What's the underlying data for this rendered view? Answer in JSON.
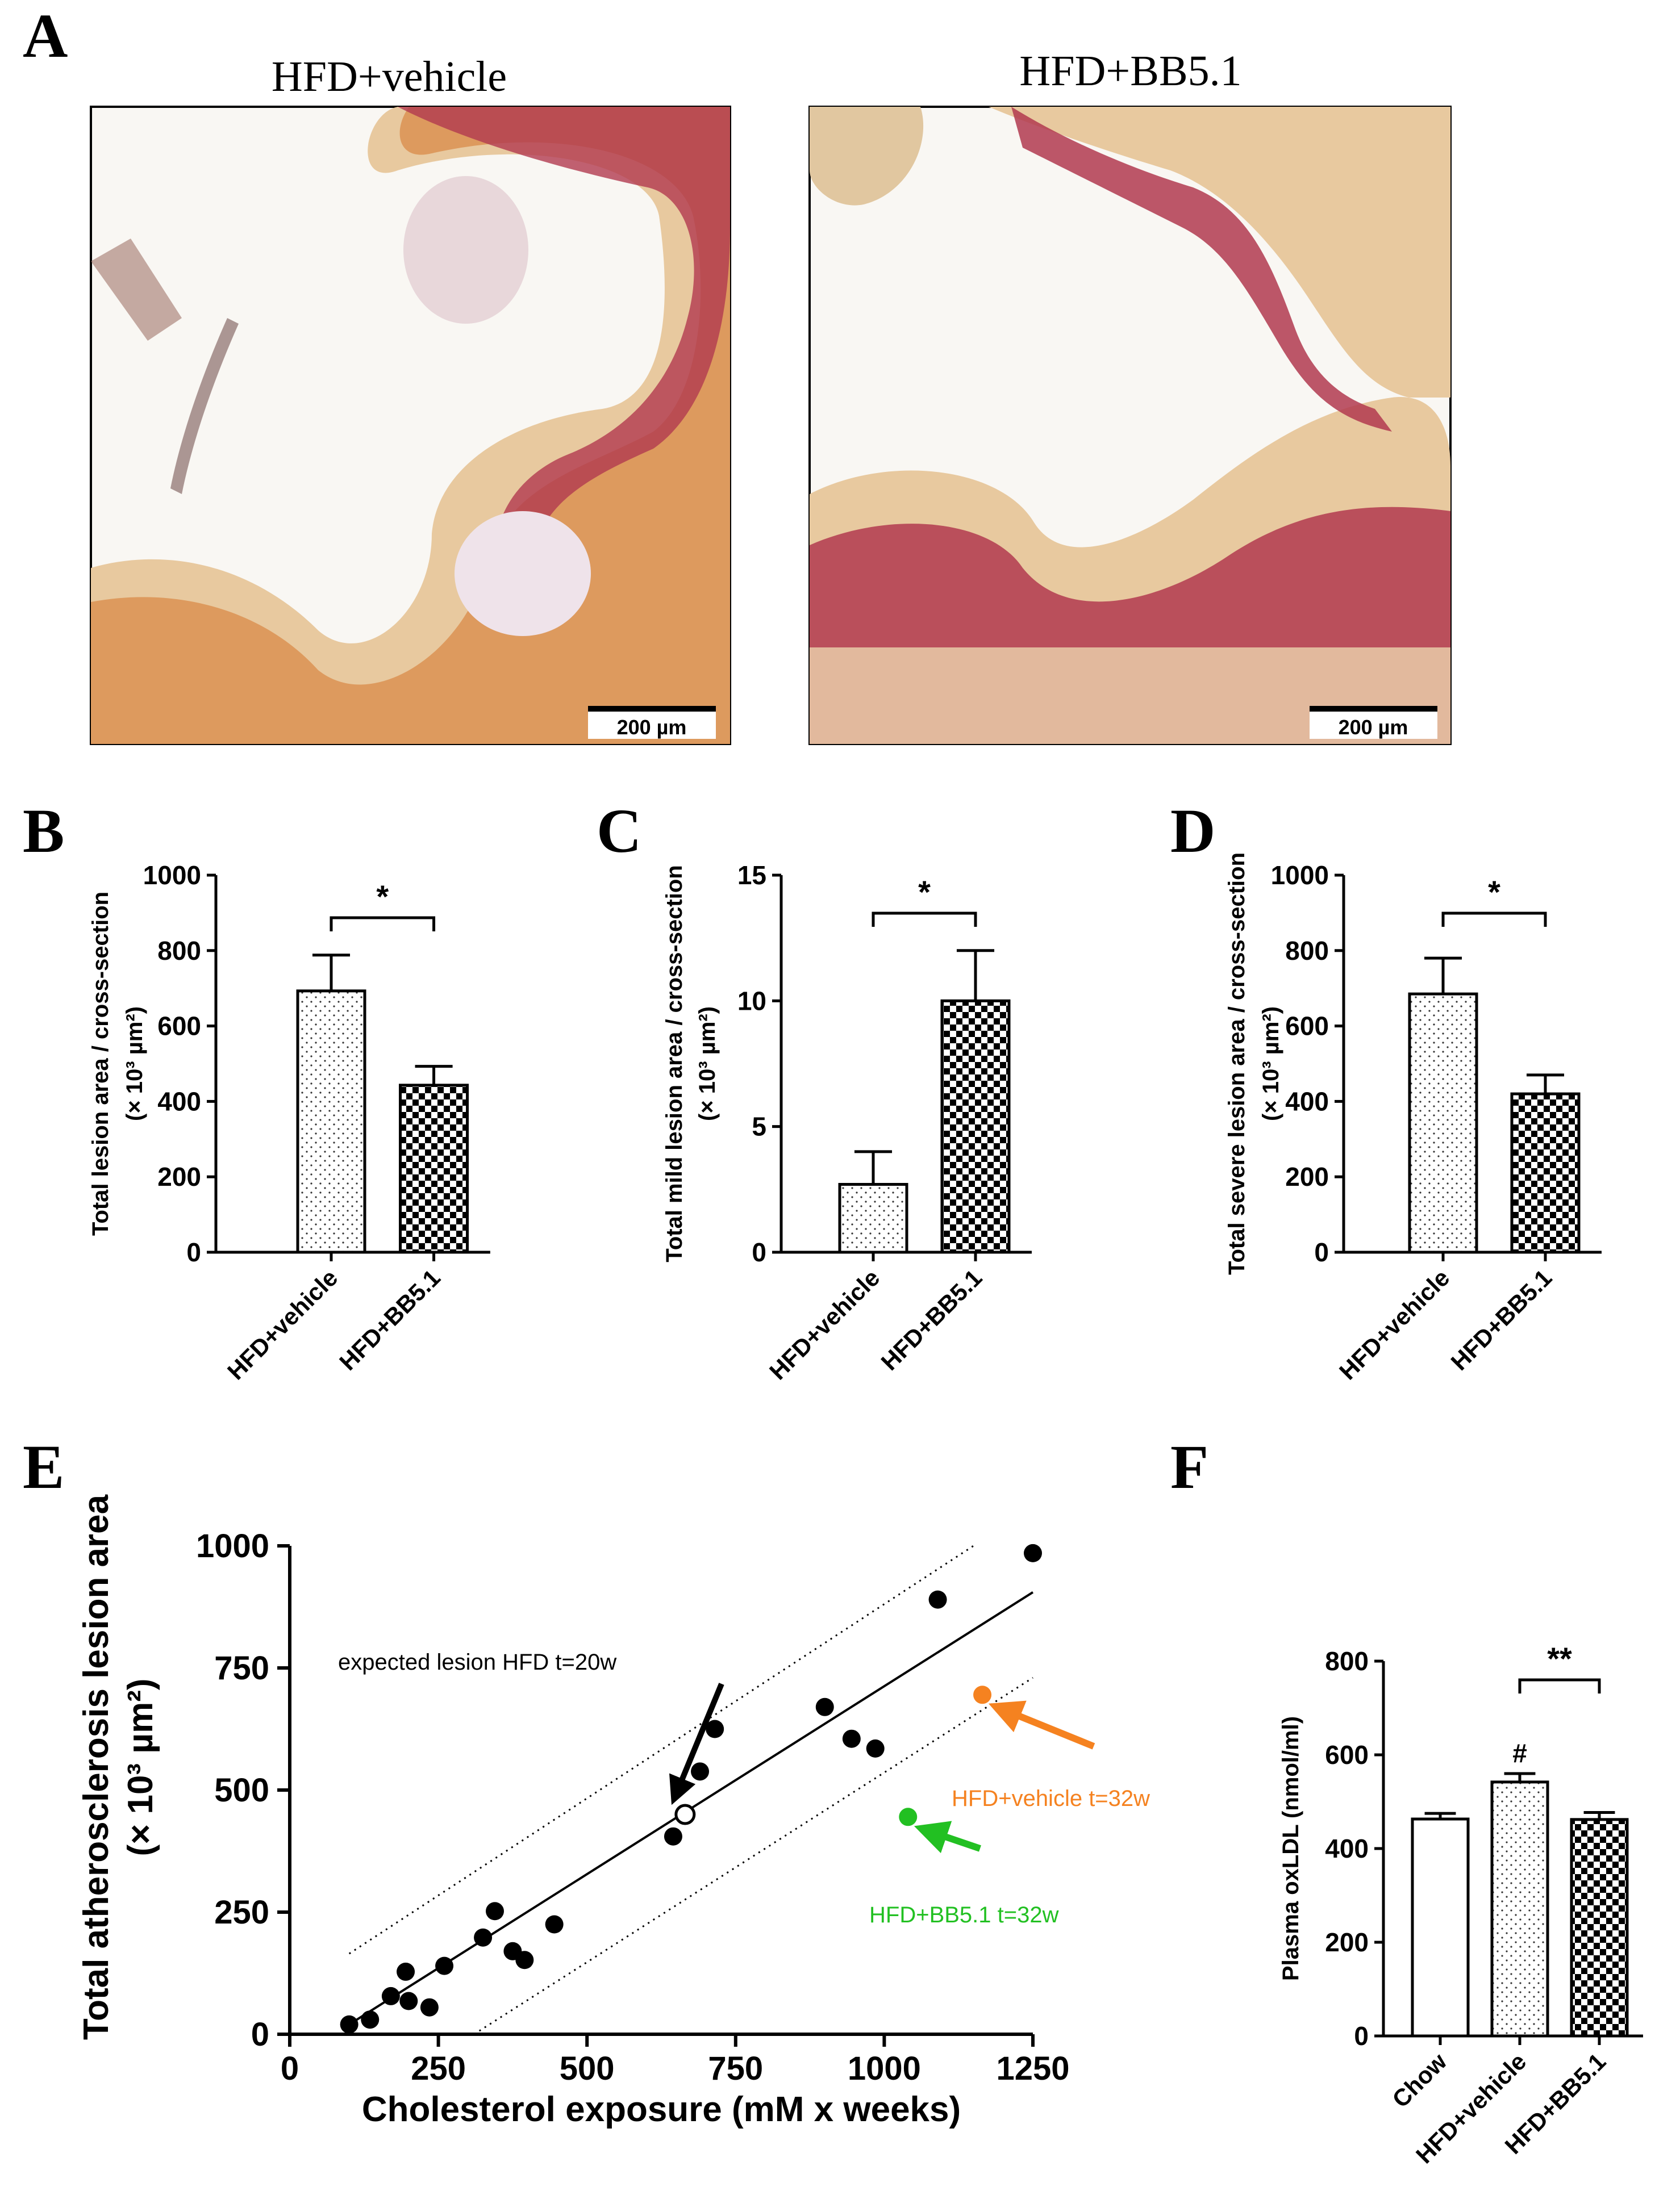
{
  "colors": {
    "axis": "#000000",
    "orange": "#f58220",
    "green": "#22c022",
    "stain_bg": "#f8f6f2",
    "stain_red": "#b23a4f",
    "stain_orange": "#d98a48",
    "stain_tan": "#e6c79a"
  },
  "panel_a": {
    "letter": "A",
    "images": [
      {
        "title": "HFD+vehicle",
        "scalebar": "200 µm"
      },
      {
        "title": "HFD+BB5.1",
        "scalebar": "200 µm"
      }
    ]
  },
  "chart_data": [
    {
      "panel": "B",
      "type": "bar",
      "categories": [
        "HFD+vehicle",
        "HFD+BB5.1"
      ],
      "values": [
        693,
        443
      ],
      "errors": [
        95,
        50
      ],
      "patterns": [
        "dots",
        "checker"
      ],
      "ylabel": [
        "Total lesion area / cross-section",
        "(× 10³ µm²)"
      ],
      "ylim": [
        0,
        1000
      ],
      "yticks": [
        0,
        200,
        400,
        600,
        800,
        1000
      ],
      "significance": [
        {
          "from": 0,
          "to": 1,
          "label": "*"
        }
      ]
    },
    {
      "panel": "C",
      "type": "bar",
      "categories": [
        "HFD+vehicle",
        "HFD+BB5.1"
      ],
      "values": [
        2.7,
        10.0
      ],
      "errors": [
        1.3,
        2.0
      ],
      "patterns": [
        "dots",
        "checker"
      ],
      "ylabel": [
        "Total mild lesion area / cross-section",
        "(× 10³ µm²)"
      ],
      "ylim": [
        0,
        15
      ],
      "yticks": [
        0,
        5,
        10,
        15
      ],
      "significance": [
        {
          "from": 0,
          "to": 1,
          "label": "*"
        }
      ]
    },
    {
      "panel": "D",
      "type": "bar",
      "categories": [
        "HFD+vehicle",
        "HFD+BB5.1"
      ],
      "values": [
        685,
        420
      ],
      "errors": [
        95,
        50
      ],
      "patterns": [
        "dots",
        "checker"
      ],
      "ylabel": [
        "Total severe lesion area / cross-section",
        "(× 10³ µm²)"
      ],
      "ylim": [
        0,
        1000
      ],
      "yticks": [
        0,
        200,
        400,
        600,
        800,
        1000
      ],
      "significance": [
        {
          "from": 0,
          "to": 1,
          "label": "*"
        }
      ]
    },
    {
      "panel": "E",
      "type": "scatter",
      "xlabel": "Cholesterol exposure (mM x weeks)",
      "ylabel": [
        "Total atherosclerosis lesion area",
        "(× 10³ µm²)"
      ],
      "xlim": [
        0,
        1250
      ],
      "ylim": [
        0,
        1000
      ],
      "xticks": [
        0,
        250,
        500,
        750,
        1000,
        1250
      ],
      "yticks": [
        0,
        250,
        500,
        750,
        1000
      ],
      "points": [
        [
          100,
          20
        ],
        [
          135,
          30
        ],
        [
          170,
          78
        ],
        [
          195,
          128
        ],
        [
          200,
          68
        ],
        [
          235,
          55
        ],
        [
          260,
          140
        ],
        [
          325,
          198
        ],
        [
          345,
          252
        ],
        [
          375,
          170
        ],
        [
          395,
          152
        ],
        [
          445,
          225
        ],
        [
          645,
          405
        ],
        [
          690,
          538
        ],
        [
          715,
          625
        ],
        [
          900,
          670
        ],
        [
          945,
          605
        ],
        [
          985,
          585
        ],
        [
          1090,
          890
        ],
        [
          1250,
          985
        ]
      ],
      "fit_line": [
        [
          100,
          20
        ],
        [
          1250,
          905
        ]
      ],
      "band_upper": [
        [
          100,
          165
        ],
        [
          1150,
          1000
        ]
      ],
      "band_lower": [
        [
          310,
          0
        ],
        [
          1250,
          730
        ]
      ],
      "expected_point": [
        665,
        450
      ],
      "highlight_points": [
        {
          "label": "HFD+vehicle t=32w",
          "x": 1165,
          "y": 695,
          "color": "#f58220"
        },
        {
          "label": "HFD+BB5.1 t=32w",
          "x": 1040,
          "y": 445,
          "color": "#22c022"
        }
      ],
      "annotations": [
        {
          "label": "expected lesion HFD t=20w"
        }
      ]
    },
    {
      "panel": "F",
      "type": "bar",
      "categories": [
        "Chow",
        "HFD+vehicle",
        "HFD+BB5.1"
      ],
      "values": [
        463,
        542,
        462
      ],
      "errors": [
        12,
        18,
        15
      ],
      "patterns": [
        "none",
        "dots",
        "checker"
      ],
      "ylabel": [
        "Plasma oxLDL (nmol/ml)"
      ],
      "ylim": [
        0,
        800
      ],
      "yticks": [
        0,
        200,
        400,
        600,
        800
      ],
      "marks": [
        {
          "index": 1,
          "label": "#"
        }
      ],
      "significance": [
        {
          "from": 1,
          "to": 2,
          "label": "**"
        }
      ]
    }
  ]
}
